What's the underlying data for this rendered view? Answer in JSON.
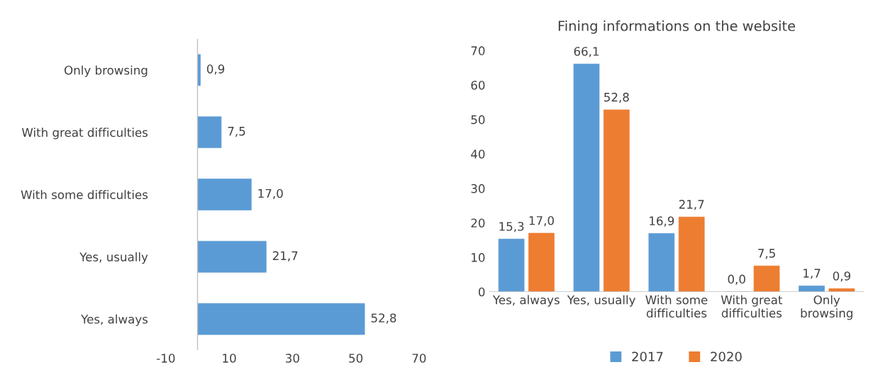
{
  "chart_data": [
    {
      "type": "bar",
      "orientation": "horizontal",
      "categories": [
        "Only browsing",
        "With great difficulties",
        "With some difficulties",
        "Yes, usually",
        "Yes, always"
      ],
      "series": [
        {
          "color": "#5b9bd5",
          "values": [
            0.9,
            7.5,
            17.0,
            21.7,
            52.8
          ],
          "value_labels": [
            "0,9",
            "7,5",
            "17,0",
            "21,7",
            "52,8"
          ]
        }
      ],
      "xlim": [
        -10,
        70
      ],
      "xticks": [
        -10,
        10,
        30,
        50,
        70
      ],
      "grid": false,
      "legend": false
    },
    {
      "type": "bar",
      "title": "Fining informations on the website",
      "categories": [
        "Yes, always",
        "Yes, usually",
        "With some\ndifficulties",
        "With great\ndifficulties",
        "Only\nbrowsing"
      ],
      "series": [
        {
          "name": "2017",
          "color": "#5b9bd5",
          "values": [
            15.3,
            66.1,
            16.9,
            0.0,
            1.7
          ],
          "value_labels": [
            "15,3",
            "66,1",
            "16,9",
            "0,0",
            "1,7"
          ]
        },
        {
          "name": "2020",
          "color": "#ed7d31",
          "values": [
            17.0,
            52.8,
            21.7,
            7.5,
            0.9
          ],
          "value_labels": [
            "17,0",
            "52,8",
            "21,7",
            "7,5",
            "0,9"
          ]
        }
      ],
      "ylim": [
        0,
        70
      ],
      "yticks": [
        0,
        10,
        20,
        30,
        40,
        50,
        60,
        70
      ],
      "grid": false,
      "legend": "bottom"
    }
  ]
}
